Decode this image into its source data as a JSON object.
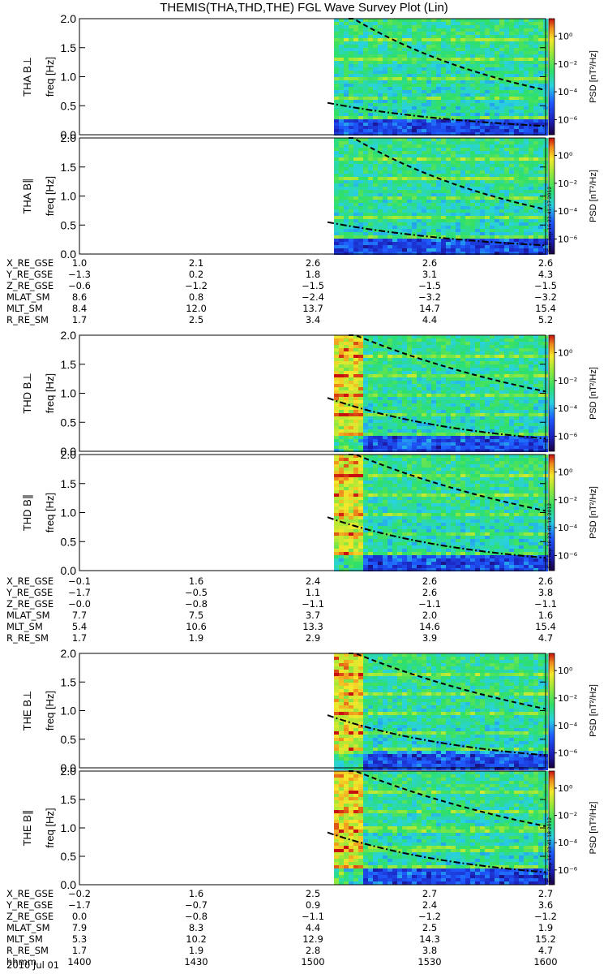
{
  "title": "THEMIS(THA,THD,THE) FGL Wave Survey Plot (Lin)",
  "palette": {
    "low": "#1a0040",
    "blue": "#1e5bff",
    "cyan": "#29d2e0",
    "green": "#2ee06a",
    "yellow": "#f4e82b",
    "red": "#c81010"
  },
  "chart_data": [
    {
      "type": "heatmap",
      "panel": "THA B⊥",
      "ylabel_probe": "THA B⊥",
      "ylabel_axis": "freq [Hz]",
      "yticks": [
        "0.0",
        "0.5",
        "1.0",
        "1.5",
        "2.0"
      ],
      "ylim": [
        0,
        2
      ],
      "data_start": "1506",
      "intensity": "normal",
      "dash_start": 2.0,
      "dashdot_start": 0.55,
      "dash_end": 0.72,
      "dashdot_end": 0.15,
      "bright_band": false,
      "side_stamp": ""
    },
    {
      "type": "heatmap",
      "panel": "THA B∥",
      "ylabel_probe": "THA B∥",
      "ylabel_axis": "freq [Hz]",
      "yticks": [
        "0.0",
        "0.5",
        "1.0",
        "1.5",
        "2.0"
      ],
      "ylim": [
        0,
        2
      ],
      "data_start": "1506",
      "intensity": "normal",
      "dash_start": 2.0,
      "dashdot_start": 0.55,
      "dash_end": 0.72,
      "dashdot_end": 0.15,
      "bright_band": false,
      "side_stamp": "Sun Sep 16 23:41:17 2012"
    },
    {
      "type": "heatmap",
      "panel": "THD B⊥",
      "ylabel_probe": "THD B⊥",
      "ylabel_axis": "freq [Hz]",
      "yticks": [
        "0.0",
        "0.5",
        "1.0",
        "1.5",
        "2.0"
      ],
      "ylim": [
        0,
        2
      ],
      "data_start": "1506",
      "intensity": "high",
      "dash_start": 2.0,
      "dashdot_start": 0.92,
      "dash_end": 0.98,
      "dashdot_end": 0.22,
      "bright_band": true,
      "side_stamp": ""
    },
    {
      "type": "heatmap",
      "panel": "THD B∥",
      "ylabel_probe": "THD B∥",
      "ylabel_axis": "freq [Hz]",
      "yticks": [
        "0.0",
        "0.5",
        "1.0",
        "1.5",
        "2.0"
      ],
      "ylim": [
        0,
        2
      ],
      "data_start": "1506",
      "intensity": "high",
      "dash_start": 2.0,
      "dashdot_start": 0.92,
      "dash_end": 0.98,
      "dashdot_end": 0.22,
      "bright_band": true,
      "side_stamp": "Sun Sep 16 23:41:18 2012"
    },
    {
      "type": "heatmap",
      "panel": "THE B⊥",
      "ylabel_probe": "THE B⊥",
      "ylabel_axis": "freq [Hz]",
      "yticks": [
        "0.0",
        "0.5",
        "1.0",
        "1.5",
        "2.0"
      ],
      "ylim": [
        0,
        2
      ],
      "data_start": "1506",
      "intensity": "high",
      "dash_start": 2.0,
      "dashdot_start": 0.92,
      "dash_end": 0.98,
      "dashdot_end": 0.22,
      "bright_band": true,
      "side_stamp": ""
    },
    {
      "type": "heatmap",
      "panel": "THE B∥",
      "ylabel_probe": "THE B∥",
      "ylabel_axis": "freq [Hz]",
      "yticks": [
        "0.0",
        "0.5",
        "1.0",
        "1.5",
        "2.0"
      ],
      "ylim": [
        0,
        2
      ],
      "data_start": "1506",
      "intensity": "high",
      "dash_start": 2.0,
      "dashdot_start": 0.92,
      "dash_end": 0.98,
      "dashdot_end": 0.22,
      "bright_band": true,
      "side_stamp": "Sun Sep 16 23:41:18 2012"
    }
  ],
  "colorbar": {
    "label": "PSD [nT²/Hz]",
    "ticks": [
      "10⁰",
      "10⁻²",
      "10⁻⁴",
      "10⁻⁶"
    ]
  },
  "ephemeris": [
    {
      "group": "THA",
      "rows": [
        {
          "label": "X_RE_GSE",
          "values": [
            "1.0",
            "2.1",
            "2.6",
            "2.6",
            "2.6"
          ]
        },
        {
          "label": "Y_RE_GSE",
          "values": [
            "−1.3",
            "0.2",
            "1.8",
            "3.1",
            "4.3"
          ]
        },
        {
          "label": "Z_RE_GSE",
          "values": [
            "−0.6",
            "−1.2",
            "−1.5",
            "−1.5",
            "−1.5"
          ]
        },
        {
          "label": "MLAT_SM",
          "values": [
            "8.6",
            "0.8",
            "−2.4",
            "−3.2",
            "−3.2"
          ]
        },
        {
          "label": "MLT_SM",
          "values": [
            "8.4",
            "12.0",
            "13.7",
            "14.7",
            "15.4"
          ]
        },
        {
          "label": "R_RE_SM",
          "values": [
            "1.7",
            "2.5",
            "3.4",
            "4.4",
            "5.2"
          ]
        }
      ]
    },
    {
      "group": "THD",
      "rows": [
        {
          "label": "X_RE_GSE",
          "values": [
            "−0.1",
            "1.6",
            "2.4",
            "2.6",
            "2.6"
          ]
        },
        {
          "label": "Y_RE_GSE",
          "values": [
            "−1.7",
            "−0.5",
            "1.1",
            "2.6",
            "3.8"
          ]
        },
        {
          "label": "Z_RE_GSE",
          "values": [
            "−0.0",
            "−0.8",
            "−1.1",
            "−1.1",
            "−1.1"
          ]
        },
        {
          "label": "MLAT_SM",
          "values": [
            "7.7",
            "7.5",
            "3.7",
            "2.0",
            "1.6"
          ]
        },
        {
          "label": "MLT_SM",
          "values": [
            "5.4",
            "10.6",
            "13.3",
            "14.6",
            "15.4"
          ]
        },
        {
          "label": "R_RE_SM",
          "values": [
            "1.7",
            "1.9",
            "2.9",
            "3.9",
            "4.7"
          ]
        }
      ]
    },
    {
      "group": "THE",
      "rows": [
        {
          "label": "X_RE_GSE",
          "values": [
            "−0.2",
            "1.6",
            "2.5",
            "2.7",
            "2.7"
          ]
        },
        {
          "label": "Y_RE_GSE",
          "values": [
            "−1.7",
            "−0.7",
            "0.9",
            "2.4",
            "3.6"
          ]
        },
        {
          "label": "Z_RE_GSE",
          "values": [
            "0.0",
            "−0.8",
            "−1.1",
            "−1.2",
            "−1.2"
          ]
        },
        {
          "label": "MLAT_SM",
          "values": [
            "7.9",
            "8.3",
            "4.4",
            "2.5",
            "1.9"
          ]
        },
        {
          "label": "MLT_SM",
          "values": [
            "5.3",
            "10.2",
            "12.9",
            "14.3",
            "15.2"
          ]
        },
        {
          "label": "R_RE_SM",
          "values": [
            "1.7",
            "1.9",
            "2.8",
            "3.8",
            "4.7"
          ]
        },
        {
          "label": "hhmm",
          "values": [
            "1400",
            "1430",
            "1500",
            "1530",
            "1600"
          ]
        }
      ]
    }
  ],
  "date_label": "2010 Jul 01"
}
